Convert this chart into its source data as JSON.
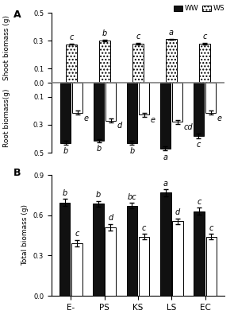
{
  "categories": [
    "E-",
    "PS",
    "KS",
    "LS",
    "EC"
  ],
  "panel_A": {
    "shoot_WS": [
      0.275,
      0.3,
      0.278,
      0.31,
      0.278
    ],
    "shoot_WS_err": [
      0.005,
      0.005,
      0.004,
      0.004,
      0.005
    ],
    "shoot_WS_labels": [
      "c",
      "b",
      "c",
      "a",
      "c"
    ],
    "root_WW": [
      0.43,
      0.415,
      0.43,
      0.47,
      0.38
    ],
    "root_WS": [
      0.215,
      0.27,
      0.23,
      0.28,
      0.215
    ],
    "root_WW_err": [
      0.015,
      0.012,
      0.015,
      0.015,
      0.015
    ],
    "root_WS_err": [
      0.015,
      0.015,
      0.015,
      0.015,
      0.015
    ],
    "root_WW_labels": [
      "b",
      "b",
      "b",
      "a",
      "c"
    ],
    "root_WS_labels": [
      "e",
      "d",
      "e",
      "cd",
      "e"
    ]
  },
  "panel_B": {
    "total_WW": [
      0.695,
      0.685,
      0.67,
      0.768,
      0.63
    ],
    "total_WS": [
      0.39,
      0.51,
      0.44,
      0.555,
      0.44
    ],
    "total_WW_err": [
      0.025,
      0.02,
      0.02,
      0.025,
      0.025
    ],
    "total_WS_err": [
      0.025,
      0.025,
      0.02,
      0.02,
      0.02
    ],
    "ww_labels": [
      "b",
      "b",
      "bc",
      "a",
      "c"
    ],
    "ws_labels": [
      "c",
      "d",
      "c",
      "d",
      "c"
    ]
  },
  "ww_color": "#111111",
  "ylabel_A_shoot": "Shoot biomass (g)",
  "ylabel_A_root": "Root biomass(g)",
  "ylabel_B": "Total biomass (g)"
}
